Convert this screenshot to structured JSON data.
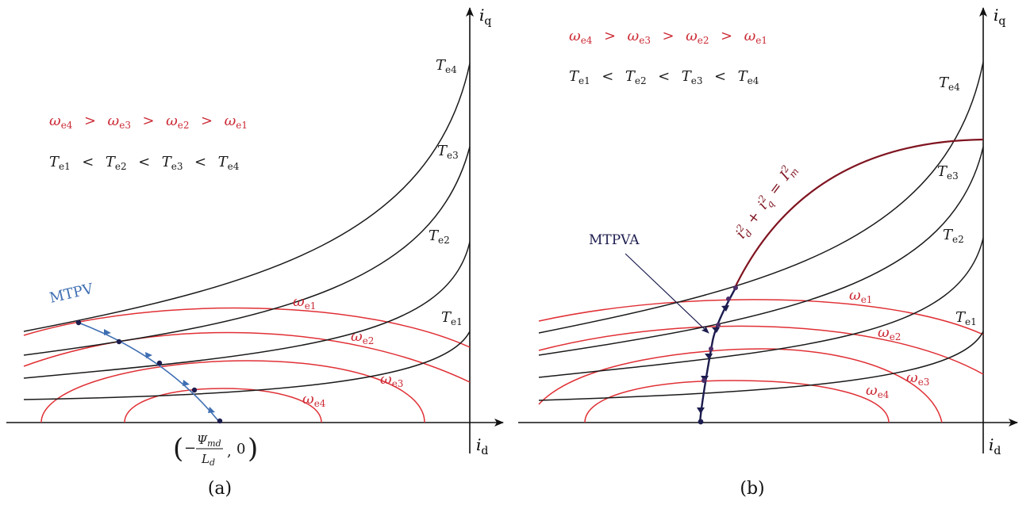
{
  "colors": {
    "axis": "#111111",
    "torque_curve": "#1a1a1a",
    "speed_ellipse": "#e03035",
    "speed_text": "#cc2a35",
    "mtpv_path": "#3f6fb3",
    "mtpva_path": "#1c1c4e",
    "current_circle": "#7f1420",
    "point": "#1c1c4e"
  },
  "panels": {
    "a": {
      "caption": "(a)",
      "axis_x": {
        "sym": "i",
        "sub": "d"
      },
      "axis_y": {
        "sym": "i",
        "sub": "q"
      },
      "speed_order": {
        "terms": [
          {
            "sym": "ω",
            "sub": "e4"
          },
          {
            "sym": "ω",
            "sub": "e3"
          },
          {
            "sym": "ω",
            "sub": "e2"
          },
          {
            "sym": "ω",
            "sub": "e1"
          }
        ],
        "op": ">"
      },
      "torque_order": {
        "terms": [
          {
            "sym": "T",
            "sub": "e1"
          },
          {
            "sym": "T",
            "sub": "e2"
          },
          {
            "sym": "T",
            "sub": "e3"
          },
          {
            "sym": "T",
            "sub": "e4"
          }
        ],
        "op": "<"
      },
      "torque_labels": [
        {
          "sym": "T",
          "sub": "e4"
        },
        {
          "sym": "T",
          "sub": "e3"
        },
        {
          "sym": "T",
          "sub": "e2"
        },
        {
          "sym": "T",
          "sub": "e1"
        }
      ],
      "speed_labels": [
        {
          "sym": "ω",
          "sub": "e1"
        },
        {
          "sym": "ω",
          "sub": "e2"
        },
        {
          "sym": "ω",
          "sub": "e3"
        },
        {
          "sym": "ω",
          "sub": "e4"
        }
      ],
      "path_label": "MTPV",
      "point_label": {
        "minus": "−",
        "numer_sym": "Ψ",
        "numer_sub": "md",
        "denom_sym": "L",
        "denom_sub": "d",
        "second": "0"
      }
    },
    "b": {
      "caption": "(b)",
      "axis_x": {
        "sym": "i",
        "sub": "d"
      },
      "axis_y": {
        "sym": "i",
        "sub": "q"
      },
      "speed_order": {
        "terms": [
          {
            "sym": "ω",
            "sub": "e4"
          },
          {
            "sym": "ω",
            "sub": "e3"
          },
          {
            "sym": "ω",
            "sub": "e2"
          },
          {
            "sym": "ω",
            "sub": "e1"
          }
        ],
        "op": ">"
      },
      "torque_order": {
        "terms": [
          {
            "sym": "T",
            "sub": "e1"
          },
          {
            "sym": "T",
            "sub": "e2"
          },
          {
            "sym": "T",
            "sub": "e3"
          },
          {
            "sym": "T",
            "sub": "e4"
          }
        ],
        "op": "<"
      },
      "torque_labels": [
        {
          "sym": "T",
          "sub": "e4"
        },
        {
          "sym": "T",
          "sub": "e3"
        },
        {
          "sym": "T",
          "sub": "e2"
        },
        {
          "sym": "T",
          "sub": "e1"
        }
      ],
      "speed_labels": [
        {
          "sym": "ω",
          "sub": "e1"
        },
        {
          "sym": "ω",
          "sub": "e2"
        },
        {
          "sym": "ω",
          "sub": "e3"
        },
        {
          "sym": "ω",
          "sub": "e4"
        }
      ],
      "path_label": "MTPVA",
      "circle_label": {
        "a": "i",
        "a_sub": "d",
        "a_sup": "2",
        "plus": "+",
        "b": "i",
        "b_sub": "q",
        "b_sup": "2",
        "eq": "=",
        "c": "I",
        "c_sub": "m",
        "c_sup": "2"
      }
    }
  }
}
